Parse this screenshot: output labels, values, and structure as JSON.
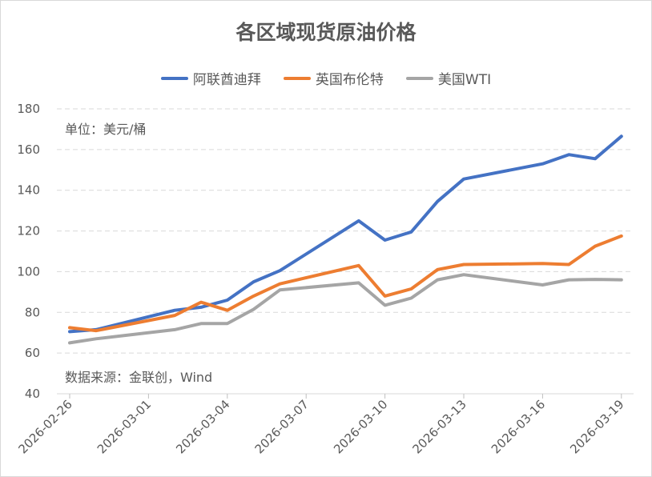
{
  "chart_data": {
    "type": "line",
    "title": "各区域现货原油价格",
    "ylim": [
      40,
      180
    ],
    "yticks": [
      40,
      60,
      80,
      100,
      120,
      140,
      160,
      180
    ],
    "xticks": [
      "2026-02-26",
      "2026-03-01",
      "2026-03-04",
      "2026-03-07",
      "2026-03-10",
      "2026-03-13",
      "2026-03-16",
      "2026-03-19"
    ],
    "x": [
      "2026-02-26",
      "2026-02-27",
      "2026-03-02",
      "2026-03-03",
      "2026-03-04",
      "2026-03-05",
      "2026-03-06",
      "2026-03-09",
      "2026-03-10",
      "2026-03-11",
      "2026-03-12",
      "2026-03-13",
      "2026-03-16",
      "2026-03-17",
      "2026-03-18",
      "2026-03-19"
    ],
    "series": [
      {
        "name": "阿联酋迪拜",
        "color": "#4472C4",
        "values": [
          70.5,
          71.5,
          81,
          82.5,
          86,
          95,
          100.5,
          125,
          115.5,
          119.5,
          134.5,
          145.5,
          153,
          157.5,
          155.5,
          166.5
        ]
      },
      {
        "name": "英国布伦特",
        "color": "#ED7D31",
        "values": [
          72.5,
          71,
          78.5,
          85,
          81,
          88,
          94,
          103,
          88,
          91.5,
          101,
          103.5,
          104,
          103.5,
          112.5,
          117.5
        ]
      },
      {
        "name": "美国WTI",
        "color": "#A5A5A5",
        "values": [
          65,
          67,
          71.5,
          74.5,
          74.5,
          81.5,
          91,
          94.5,
          83.5,
          87,
          96,
          98.5,
          93.5,
          96,
          96.2,
          96
        ]
      }
    ],
    "grid": true,
    "legend": "top",
    "annotations": [
      "单位：美元/桶",
      "数据来源：金联创，Wind"
    ]
  }
}
